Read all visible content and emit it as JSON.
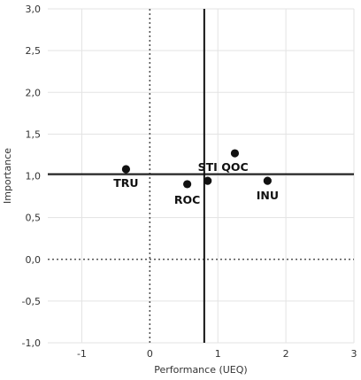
{
  "chart_data": {
    "type": "scatter",
    "xlabel": "Performance (UEQ)",
    "ylabel": "Importance",
    "xlim": [
      -1.5,
      3
    ],
    "ylim": [
      -1,
      3
    ],
    "x_ticks": [
      -1,
      0,
      1,
      2,
      3
    ],
    "x_tick_labels": [
      "-1",
      "0",
      "1",
      "2",
      "3"
    ],
    "y_ticks": [
      -1,
      -0.5,
      0,
      0.5,
      1,
      1.5,
      2,
      2.5,
      3
    ],
    "y_tick_labels": [
      "-1,0",
      "-0,5",
      "0,0",
      "0,5",
      "1,0",
      "1,5",
      "2,0",
      "2,5",
      "3,0"
    ],
    "grid": true,
    "reference_lines": {
      "x": 0.8,
      "y": 1.02
    },
    "points": [
      {
        "label": "TRU",
        "x": -0.35,
        "y": 1.08
      },
      {
        "label": "ROC",
        "x": 0.55,
        "y": 0.9
      },
      {
        "label": "STI",
        "x": 0.85,
        "y": 0.94
      },
      {
        "label": "QOC",
        "x": 1.25,
        "y": 1.27
      },
      {
        "label": "INU",
        "x": 1.73,
        "y": 0.94
      }
    ]
  }
}
